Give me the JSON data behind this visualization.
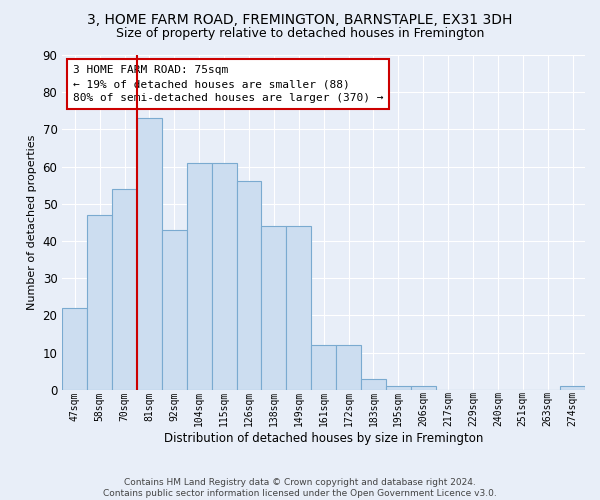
{
  "title": "3, HOME FARM ROAD, FREMINGTON, BARNSTAPLE, EX31 3DH",
  "subtitle": "Size of property relative to detached houses in Fremington",
  "xlabel": "Distribution of detached houses by size in Fremington",
  "ylabel": "Number of detached properties",
  "categories": [
    "47sqm",
    "58sqm",
    "70sqm",
    "81sqm",
    "92sqm",
    "104sqm",
    "115sqm",
    "126sqm",
    "138sqm",
    "149sqm",
    "161sqm",
    "172sqm",
    "183sqm",
    "195sqm",
    "206sqm",
    "217sqm",
    "229sqm",
    "240sqm",
    "251sqm",
    "263sqm",
    "274sqm"
  ],
  "values": [
    22,
    47,
    54,
    73,
    43,
    61,
    61,
    56,
    44,
    44,
    12,
    12,
    3,
    1,
    1,
    0,
    0,
    0,
    0,
    0,
    1
  ],
  "bar_color": "#ccddf0",
  "bar_edge_color": "#7aaad0",
  "vline_x": 2.5,
  "vline_color": "#cc0000",
  "annotation_text": "3 HOME FARM ROAD: 75sqm\n← 19% of detached houses are smaller (88)\n80% of semi-detached houses are larger (370) →",
  "annotation_box_color": "#ffffff",
  "annotation_box_edge": "#cc0000",
  "ylim": [
    0,
    90
  ],
  "yticks": [
    0,
    10,
    20,
    30,
    40,
    50,
    60,
    70,
    80,
    90
  ],
  "footnote": "Contains HM Land Registry data © Crown copyright and database right 2024.\nContains public sector information licensed under the Open Government Licence v3.0.",
  "background_color": "#e8eef8",
  "grid_color": "#ffffff",
  "title_fontsize": 10,
  "subtitle_fontsize": 9
}
